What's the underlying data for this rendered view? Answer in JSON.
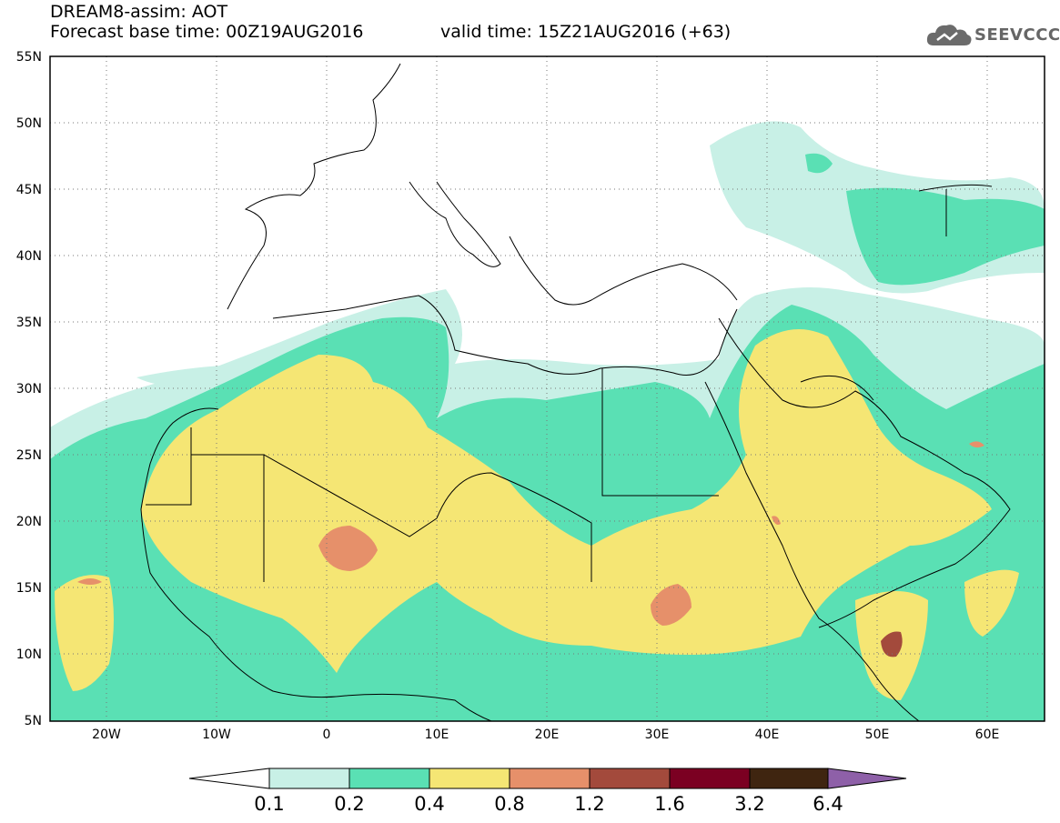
{
  "header": {
    "line1": "DREAM8-assim: AOT",
    "line2_left": "Forecast base time: 00Z19AUG2016",
    "line2_right": "valid time: 15Z21AUG2016 (+63)"
  },
  "logo": {
    "text": "SEEVCCC",
    "icon": "cloud-logo-icon"
  },
  "map": {
    "lat_labels": [
      "55N",
      "50N",
      "45N",
      "40N",
      "35N",
      "30N",
      "25N",
      "20N",
      "15N",
      "10N",
      "5N"
    ],
    "lon_labels": [
      "20W",
      "10W",
      "0",
      "10E",
      "20E",
      "30E",
      "40E",
      "50E",
      "60E"
    ]
  },
  "colorbar": {
    "labels": [
      "0.1",
      "0.2",
      "0.4",
      "0.8",
      "1.2",
      "1.6",
      "3.2",
      "6.4"
    ],
    "colors": [
      "#ffffff",
      "#c8f0e6",
      "#5ae0b4",
      "#f5e674",
      "#e6906a",
      "#a34a3c",
      "#7b0022",
      "#3f2510",
      "#8e60a8"
    ]
  },
  "colors": {
    "c1": "#c8f0e6",
    "c2": "#5ae0b4",
    "c3": "#f5e674",
    "c4": "#e6906a",
    "c5": "#a34a3c"
  }
}
